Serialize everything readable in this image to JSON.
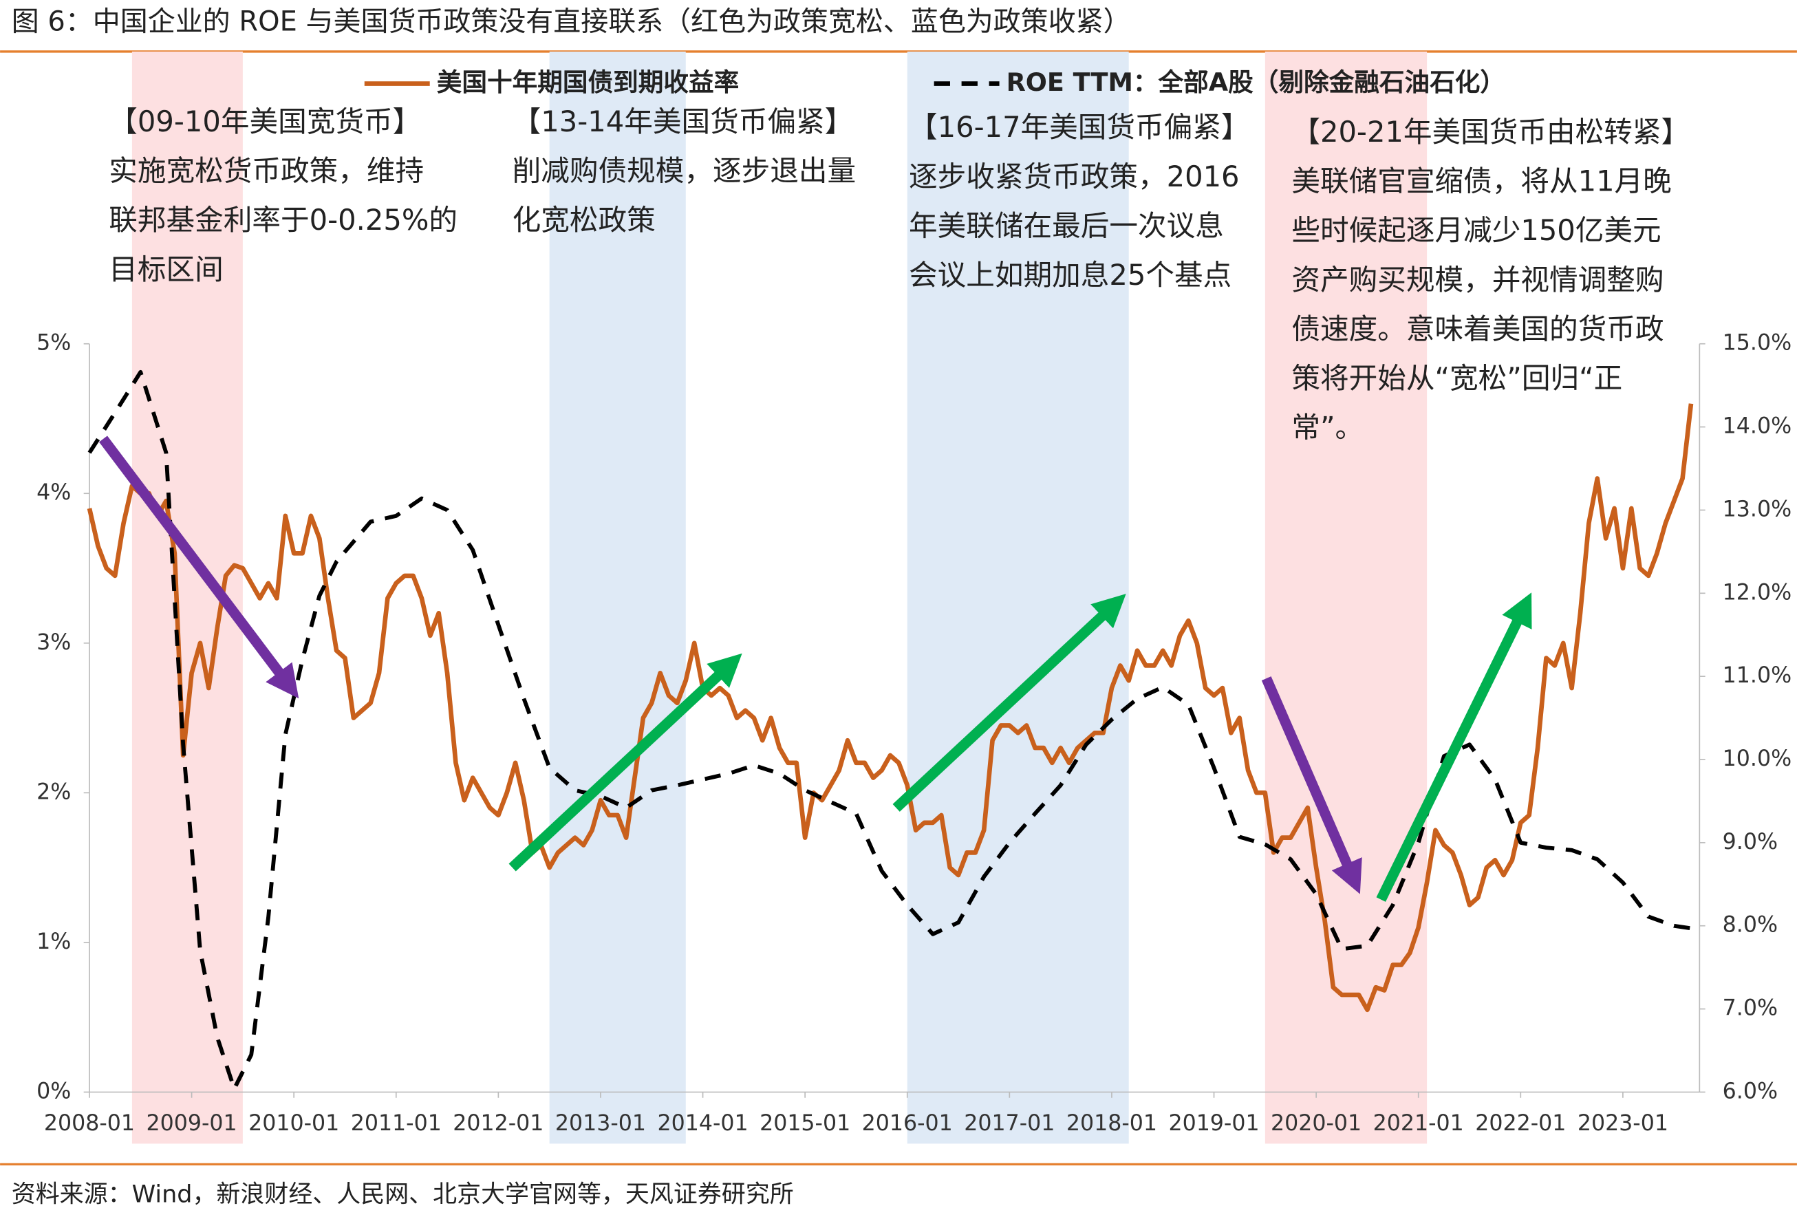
{
  "chart_data": {
    "type": "line",
    "title": "图 6：中国企业的 ROE 与美国货币政策没有直接联系（红色为政策宽松、蓝色为政策收紧）",
    "source": "资料来源：Wind，新浪财经、人民网、北京大学官网等，天风证券研究所",
    "xlim": [
      "2008-01",
      "2023-10"
    ],
    "xticks": [
      "2008-01",
      "2009-01",
      "2010-01",
      "2011-01",
      "2012-01",
      "2013-01",
      "2014-01",
      "2015-01",
      "2016-01",
      "2017-01",
      "2018-01",
      "2019-01",
      "2020-01",
      "2021-01",
      "2022-01",
      "2023-01"
    ],
    "ylim": [
      0,
      5
    ],
    "yticks": [
      {
        "value": 0,
        "label": "0%"
      },
      {
        "value": 1,
        "label": "1%"
      },
      {
        "value": 2,
        "label": "2%"
      },
      {
        "value": 3,
        "label": "3%"
      },
      {
        "value": 4,
        "label": "4%"
      },
      {
        "value": 5,
        "label": "5%"
      }
    ],
    "y2lim": [
      6,
      15
    ],
    "y2ticks": [
      {
        "value": 6,
        "label": "6.0%"
      },
      {
        "value": 7,
        "label": "7.0%"
      },
      {
        "value": 8,
        "label": "8.0%"
      },
      {
        "value": 9,
        "label": "9.0%"
      },
      {
        "value": 10,
        "label": "10.0%"
      },
      {
        "value": 11,
        "label": "11.0%"
      },
      {
        "value": 12,
        "label": "12.0%"
      },
      {
        "value": 13,
        "label": "13.0%"
      },
      {
        "value": 14,
        "label": "14.0%"
      },
      {
        "value": 15,
        "label": "15.0%"
      }
    ],
    "grid": false,
    "legend": "top",
    "shaded_regions": [
      {
        "start": "2008-06",
        "end": "2009-07",
        "color": "#fde0e1"
      },
      {
        "start": "2012-07",
        "end": "2013-11",
        "color": "#dfeaf6"
      },
      {
        "start": "2016-01",
        "end": "2018-03",
        "color": "#dfeaf6"
      },
      {
        "start": "2019-07",
        "end": "2021-02",
        "color": "#fde0e1"
      }
    ],
    "annotations": [
      {
        "title": "【09-10年美国宽货币】",
        "lines": [
          "实施宽松货币政策，维持",
          "联邦基金利率于0-0.25%的",
          "目标区间"
        ]
      },
      {
        "title": "【13-14年美国货币偏紧】",
        "lines": [
          "削减购债规模，逐步退出量",
          "化宽松政策"
        ]
      },
      {
        "title": "【16-17年美国货币偏紧】",
        "lines": [
          "逐步收紧货币政策，2016",
          "年美联储在最后一次议息",
          "会议上如期加息25个基点"
        ]
      },
      {
        "title": "【20-21年美国货币由松转紧】",
        "lines": [
          "美联储官宣缩债，将从11月晚",
          "些时候起逐月减少150亿美元",
          "资产购买规模，并视情调整购",
          "债速度。意味着美国的货币政",
          "策将开始从“宽松”回归“正",
          "常”。"
        ]
      }
    ],
    "series": [
      {
        "name": "美国十年期国债到期收益率",
        "color": "#c9601c",
        "axis": "y",
        "dash": false,
        "x": [
          "2008-01",
          "2008-02",
          "2008-03",
          "2008-04",
          "2008-05",
          "2008-06",
          "2008-07",
          "2008-08",
          "2008-09",
          "2008-10",
          "2008-11",
          "2008-12",
          "2009-01",
          "2009-02",
          "2009-03",
          "2009-04",
          "2009-05",
          "2009-06",
          "2009-07",
          "2009-08",
          "2009-09",
          "2009-10",
          "2009-11",
          "2009-12",
          "2010-01",
          "2010-02",
          "2010-03",
          "2010-04",
          "2010-05",
          "2010-06",
          "2010-07",
          "2010-08",
          "2010-09",
          "2010-10",
          "2010-11",
          "2010-12",
          "2011-01",
          "2011-02",
          "2011-03",
          "2011-04",
          "2011-05",
          "2011-06",
          "2011-07",
          "2011-08",
          "2011-09",
          "2011-10",
          "2011-11",
          "2011-12",
          "2012-01",
          "2012-02",
          "2012-03",
          "2012-04",
          "2012-05",
          "2012-06",
          "2012-07",
          "2012-08",
          "2012-09",
          "2012-10",
          "2012-11",
          "2012-12",
          "2013-01",
          "2013-02",
          "2013-03",
          "2013-04",
          "2013-05",
          "2013-06",
          "2013-07",
          "2013-08",
          "2013-09",
          "2013-10",
          "2013-11",
          "2013-12",
          "2014-01",
          "2014-02",
          "2014-03",
          "2014-04",
          "2014-05",
          "2014-06",
          "2014-07",
          "2014-08",
          "2014-09",
          "2014-10",
          "2014-11",
          "2014-12",
          "2015-01",
          "2015-02",
          "2015-03",
          "2015-04",
          "2015-05",
          "2015-06",
          "2015-07",
          "2015-08",
          "2015-09",
          "2015-10",
          "2015-11",
          "2015-12",
          "2016-01",
          "2016-02",
          "2016-03",
          "2016-04",
          "2016-05",
          "2016-06",
          "2016-07",
          "2016-08",
          "2016-09",
          "2016-10",
          "2016-11",
          "2016-12",
          "2017-01",
          "2017-02",
          "2017-03",
          "2017-04",
          "2017-05",
          "2017-06",
          "2017-07",
          "2017-08",
          "2017-09",
          "2017-10",
          "2017-11",
          "2017-12",
          "2018-01",
          "2018-02",
          "2018-03",
          "2018-04",
          "2018-05",
          "2018-06",
          "2018-07",
          "2018-08",
          "2018-09",
          "2018-10",
          "2018-11",
          "2018-12",
          "2019-01",
          "2019-02",
          "2019-03",
          "2019-04",
          "2019-05",
          "2019-06",
          "2019-07",
          "2019-08",
          "2019-09",
          "2019-10",
          "2019-11",
          "2019-12",
          "2020-01",
          "2020-02",
          "2020-03",
          "2020-04",
          "2020-05",
          "2020-06",
          "2020-07",
          "2020-08",
          "2020-09",
          "2020-10",
          "2020-11",
          "2020-12",
          "2021-01",
          "2021-02",
          "2021-03",
          "2021-04",
          "2021-05",
          "2021-06",
          "2021-07",
          "2021-08",
          "2021-09",
          "2021-10",
          "2021-11",
          "2021-12",
          "2022-01",
          "2022-02",
          "2022-03",
          "2022-04",
          "2022-05",
          "2022-06",
          "2022-07",
          "2022-08",
          "2022-09",
          "2022-10",
          "2022-11",
          "2022-12",
          "2023-01",
          "2023-02",
          "2023-03",
          "2023-04",
          "2023-05",
          "2023-06",
          "2023-07",
          "2023-08",
          "2023-09"
        ],
        "values": [
          3.9,
          3.65,
          3.5,
          3.45,
          3.8,
          4.05,
          4.0,
          4.0,
          3.85,
          3.95,
          3.6,
          2.25,
          2.8,
          3.0,
          2.7,
          3.1,
          3.45,
          3.52,
          3.5,
          3.4,
          3.3,
          3.4,
          3.3,
          3.85,
          3.6,
          3.6,
          3.85,
          3.7,
          3.3,
          2.95,
          2.9,
          2.5,
          2.55,
          2.6,
          2.8,
          3.3,
          3.4,
          3.45,
          3.45,
          3.3,
          3.05,
          3.2,
          2.8,
          2.2,
          1.95,
          2.1,
          2.0,
          1.9,
          1.85,
          2.0,
          2.2,
          1.95,
          1.6,
          1.65,
          1.5,
          1.6,
          1.65,
          1.7,
          1.65,
          1.75,
          1.95,
          1.85,
          1.85,
          1.7,
          2.1,
          2.5,
          2.6,
          2.8,
          2.65,
          2.6,
          2.75,
          3.0,
          2.7,
          2.65,
          2.7,
          2.65,
          2.5,
          2.55,
          2.5,
          2.35,
          2.5,
          2.3,
          2.2,
          2.2,
          1.7,
          2.0,
          1.95,
          2.05,
          2.15,
          2.35,
          2.2,
          2.2,
          2.1,
          2.15,
          2.25,
          2.2,
          2.05,
          1.75,
          1.8,
          1.8,
          1.85,
          1.5,
          1.45,
          1.6,
          1.6,
          1.75,
          2.35,
          2.45,
          2.45,
          2.4,
          2.45,
          2.3,
          2.3,
          2.2,
          2.3,
          2.2,
          2.3,
          2.35,
          2.4,
          2.4,
          2.7,
          2.85,
          2.75,
          2.95,
          2.85,
          2.85,
          2.95,
          2.85,
          3.05,
          3.15,
          3.0,
          2.7,
          2.65,
          2.7,
          2.4,
          2.5,
          2.15,
          2.0,
          2.0,
          1.6,
          1.7,
          1.7,
          1.8,
          1.9,
          1.5,
          1.15,
          0.7,
          0.65,
          0.65,
          0.65,
          0.55,
          0.7,
          0.68,
          0.85,
          0.85,
          0.93,
          1.1,
          1.4,
          1.75,
          1.65,
          1.6,
          1.45,
          1.25,
          1.3,
          1.5,
          1.55,
          1.45,
          1.55,
          1.8,
          1.85,
          2.3,
          2.9,
          2.85,
          3.0,
          2.7,
          3.2,
          3.8,
          4.1,
          3.7,
          3.9,
          3.5,
          3.9,
          3.5,
          3.45,
          3.6,
          3.8,
          3.95,
          4.1,
          4.6
        ]
      },
      {
        "name": "ROE TTM：全部A股（剔除金融石油石化）",
        "color": "#000000",
        "axis": "y2",
        "dash": true,
        "x": [
          "2008-01",
          "2008-04",
          "2008-07",
          "2008-10",
          "2008-12",
          "2009-02",
          "2009-04",
          "2009-06",
          "2009-08",
          "2009-10",
          "2009-12",
          "2010-02",
          "2010-04",
          "2010-06",
          "2010-10",
          "2011-01",
          "2011-04",
          "2011-07",
          "2011-10",
          "2012-01",
          "2012-04",
          "2012-07",
          "2012-10",
          "2013-01",
          "2013-04",
          "2013-07",
          "2013-10",
          "2014-01",
          "2014-04",
          "2014-07",
          "2014-10",
          "2015-01",
          "2015-04",
          "2015-07",
          "2015-10",
          "2016-01",
          "2016-04",
          "2016-07",
          "2016-10",
          "2017-01",
          "2017-04",
          "2017-07",
          "2017-10",
          "2018-01",
          "2018-04",
          "2018-07",
          "2018-10",
          "2019-01",
          "2019-04",
          "2019-07",
          "2019-10",
          "2020-01",
          "2020-04",
          "2020-07",
          "2020-10",
          "2021-01",
          "2021-04",
          "2021-07",
          "2021-10",
          "2022-01",
          "2022-04",
          "2022-07",
          "2022-10",
          "2023-01",
          "2023-04",
          "2023-07",
          "2023-09"
        ],
        "values": [
          13.69,
          14.17,
          14.66,
          13.69,
          10.18,
          7.7,
          6.66,
          6.04,
          6.45,
          8.1,
          10.3,
          11.2,
          11.97,
          12.38,
          12.86,
          12.93,
          13.14,
          13.0,
          12.52,
          11.62,
          10.73,
          9.9,
          9.63,
          9.56,
          9.42,
          9.63,
          9.69,
          9.76,
          9.83,
          9.93,
          9.83,
          9.63,
          9.49,
          9.35,
          8.66,
          8.25,
          7.9,
          8.04,
          8.59,
          9.0,
          9.35,
          9.69,
          10.18,
          10.48,
          10.73,
          10.87,
          10.66,
          9.9,
          9.07,
          8.98,
          8.8,
          8.38,
          7.72,
          7.76,
          8.25,
          9.0,
          10.04,
          10.18,
          9.76,
          9.0,
          8.94,
          8.91,
          8.8,
          8.52,
          8.11,
          8.0,
          7.97
        ]
      }
    ]
  }
}
